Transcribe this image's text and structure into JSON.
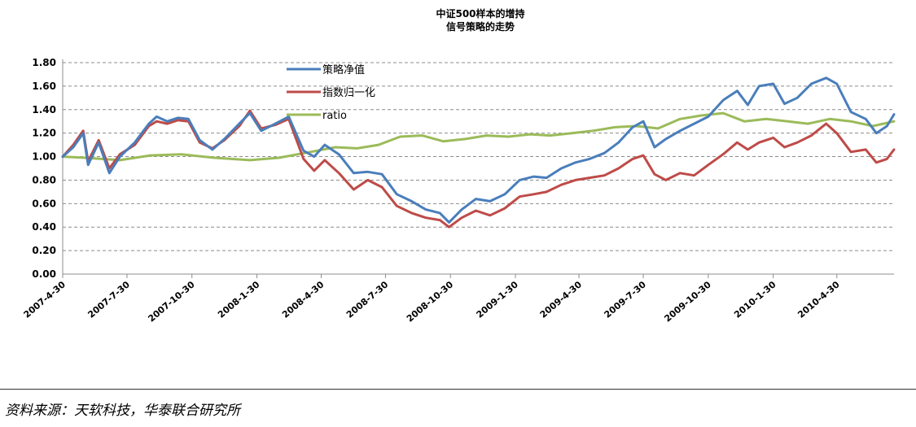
{
  "chart_data": {
    "type": "line",
    "title": [
      "中证500样本的增持",
      "信号策略的走势"
    ],
    "xlabel": "",
    "ylabel": "",
    "ylim": [
      0,
      1.8
    ],
    "yticks": [
      "0.00",
      "0.20",
      "0.40",
      "0.60",
      "0.80",
      "1.00",
      "1.20",
      "1.40",
      "1.60",
      "1.80"
    ],
    "x_range": [
      "2007-4-30",
      "2010-7-20"
    ],
    "xticks": [
      "2007-4-30",
      "2007-7-30",
      "2007-10-30",
      "2008-1-30",
      "2008-4-30",
      "2008-7-30",
      "2008-10-30",
      "2009-1-30",
      "2009-4-30",
      "2009-7-30",
      "2009-10-30",
      "2010-1-30",
      "2010-4-30"
    ],
    "grid": "horizontal dashed",
    "legend_position": "top-center",
    "series": [
      {
        "name": "策略净值",
        "color": "#4a7ebb",
        "points": [
          [
            "2007-4-30",
            1.0
          ],
          [
            "2007-5-15",
            1.08
          ],
          [
            "2007-5-29",
            1.2
          ],
          [
            "2007-6-5",
            0.93
          ],
          [
            "2007-6-20",
            1.12
          ],
          [
            "2007-7-5",
            0.86
          ],
          [
            "2007-7-20",
            1.0
          ],
          [
            "2007-8-10",
            1.12
          ],
          [
            "2007-8-30",
            1.28
          ],
          [
            "2007-9-10",
            1.34
          ],
          [
            "2007-9-25",
            1.3
          ],
          [
            "2007-10-10",
            1.33
          ],
          [
            "2007-10-25",
            1.32
          ],
          [
            "2007-11-10",
            1.14
          ],
          [
            "2007-11-28",
            1.06
          ],
          [
            "2007-12-15",
            1.15
          ],
          [
            "2008-1-5",
            1.28
          ],
          [
            "2008-1-20",
            1.37
          ],
          [
            "2008-2-5",
            1.22
          ],
          [
            "2008-2-25",
            1.28
          ],
          [
            "2008-3-15",
            1.34
          ],
          [
            "2008-4-5",
            1.05
          ],
          [
            "2008-4-20",
            1.0
          ],
          [
            "2008-5-5",
            1.1
          ],
          [
            "2008-5-25",
            1.02
          ],
          [
            "2008-6-15",
            0.86
          ],
          [
            "2008-7-5",
            0.87
          ],
          [
            "2008-7-25",
            0.85
          ],
          [
            "2008-8-15",
            0.68
          ],
          [
            "2008-9-5",
            0.62
          ],
          [
            "2008-9-25",
            0.55
          ],
          [
            "2008-10-15",
            0.52
          ],
          [
            "2008-10-28",
            0.44
          ],
          [
            "2008-11-15",
            0.55
          ],
          [
            "2008-12-5",
            0.64
          ],
          [
            "2008-12-25",
            0.62
          ],
          [
            "2009-1-15",
            0.68
          ],
          [
            "2009-2-5",
            0.8
          ],
          [
            "2009-2-25",
            0.83
          ],
          [
            "2009-3-15",
            0.82
          ],
          [
            "2009-4-5",
            0.9
          ],
          [
            "2009-4-25",
            0.95
          ],
          [
            "2009-5-15",
            0.98
          ],
          [
            "2009-6-5",
            1.03
          ],
          [
            "2009-6-25",
            1.12
          ],
          [
            "2009-7-15",
            1.25
          ],
          [
            "2009-7-30",
            1.3
          ],
          [
            "2009-8-15",
            1.08
          ],
          [
            "2009-8-31",
            1.15
          ],
          [
            "2009-9-20",
            1.22
          ],
          [
            "2009-10-10",
            1.28
          ],
          [
            "2009-10-30",
            1.34
          ],
          [
            "2009-11-20",
            1.48
          ],
          [
            "2009-12-10",
            1.56
          ],
          [
            "2009-12-25",
            1.44
          ],
          [
            "2010-1-10",
            1.6
          ],
          [
            "2010-1-30",
            1.62
          ],
          [
            "2010-2-15",
            1.45
          ],
          [
            "2010-3-5",
            1.5
          ],
          [
            "2010-3-25",
            1.62
          ],
          [
            "2010-4-15",
            1.67
          ],
          [
            "2010-4-30",
            1.62
          ],
          [
            "2010-5-20",
            1.38
          ],
          [
            "2010-6-10",
            1.32
          ],
          [
            "2010-6-25",
            1.2
          ],
          [
            "2010-7-10",
            1.26
          ],
          [
            "2010-7-20",
            1.36
          ]
        ]
      },
      {
        "name": "指数归一化",
        "color": "#be4b48",
        "points": [
          [
            "2007-4-30",
            1.0
          ],
          [
            "2007-5-15",
            1.1
          ],
          [
            "2007-5-29",
            1.22
          ],
          [
            "2007-6-5",
            0.96
          ],
          [
            "2007-6-20",
            1.14
          ],
          [
            "2007-7-5",
            0.9
          ],
          [
            "2007-7-20",
            1.02
          ],
          [
            "2007-8-10",
            1.1
          ],
          [
            "2007-8-30",
            1.26
          ],
          [
            "2007-9-10",
            1.3
          ],
          [
            "2007-9-25",
            1.28
          ],
          [
            "2007-10-10",
            1.31
          ],
          [
            "2007-10-25",
            1.3
          ],
          [
            "2007-11-10",
            1.12
          ],
          [
            "2007-11-28",
            1.07
          ],
          [
            "2007-12-15",
            1.14
          ],
          [
            "2008-1-5",
            1.26
          ],
          [
            "2008-1-20",
            1.39
          ],
          [
            "2008-2-5",
            1.24
          ],
          [
            "2008-2-25",
            1.27
          ],
          [
            "2008-3-15",
            1.32
          ],
          [
            "2008-4-5",
            0.98
          ],
          [
            "2008-4-20",
            0.88
          ],
          [
            "2008-5-5",
            0.97
          ],
          [
            "2008-5-25",
            0.86
          ],
          [
            "2008-6-15",
            0.72
          ],
          [
            "2008-7-5",
            0.8
          ],
          [
            "2008-7-25",
            0.74
          ],
          [
            "2008-8-15",
            0.58
          ],
          [
            "2008-9-5",
            0.52
          ],
          [
            "2008-9-25",
            0.48
          ],
          [
            "2008-10-15",
            0.46
          ],
          [
            "2008-10-28",
            0.4
          ],
          [
            "2008-11-15",
            0.48
          ],
          [
            "2008-12-5",
            0.54
          ],
          [
            "2008-12-25",
            0.5
          ],
          [
            "2009-1-15",
            0.56
          ],
          [
            "2009-2-5",
            0.66
          ],
          [
            "2009-2-25",
            0.68
          ],
          [
            "2009-3-15",
            0.7
          ],
          [
            "2009-4-5",
            0.76
          ],
          [
            "2009-4-25",
            0.8
          ],
          [
            "2009-5-15",
            0.82
          ],
          [
            "2009-6-5",
            0.84
          ],
          [
            "2009-6-25",
            0.9
          ],
          [
            "2009-7-15",
            0.98
          ],
          [
            "2009-7-30",
            1.01
          ],
          [
            "2009-8-15",
            0.85
          ],
          [
            "2009-8-31",
            0.8
          ],
          [
            "2009-9-20",
            0.86
          ],
          [
            "2009-10-10",
            0.84
          ],
          [
            "2009-10-30",
            0.93
          ],
          [
            "2009-11-20",
            1.02
          ],
          [
            "2009-12-10",
            1.12
          ],
          [
            "2009-12-25",
            1.06
          ],
          [
            "2010-1-10",
            1.12
          ],
          [
            "2010-1-30",
            1.16
          ],
          [
            "2010-2-15",
            1.08
          ],
          [
            "2010-3-5",
            1.12
          ],
          [
            "2010-3-25",
            1.18
          ],
          [
            "2010-4-15",
            1.28
          ],
          [
            "2010-4-30",
            1.2
          ],
          [
            "2010-5-20",
            1.04
          ],
          [
            "2010-6-10",
            1.06
          ],
          [
            "2010-6-25",
            0.95
          ],
          [
            "2010-7-10",
            0.98
          ],
          [
            "2010-7-20",
            1.06
          ]
        ]
      },
      {
        "name": "ratio",
        "color": "#9bbb59",
        "points": [
          [
            "2007-4-30",
            1.0
          ],
          [
            "2007-6-1",
            0.99
          ],
          [
            "2007-7-20",
            0.97
          ],
          [
            "2007-9-1",
            1.01
          ],
          [
            "2007-10-15",
            1.02
          ],
          [
            "2007-12-1",
            0.99
          ],
          [
            "2008-1-20",
            0.97
          ],
          [
            "2008-3-1",
            0.99
          ],
          [
            "2008-4-15",
            1.04
          ],
          [
            "2008-5-20",
            1.08
          ],
          [
            "2008-6-20",
            1.07
          ],
          [
            "2008-7-20",
            1.1
          ],
          [
            "2008-8-20",
            1.17
          ],
          [
            "2008-9-20",
            1.18
          ],
          [
            "2008-10-20",
            1.13
          ],
          [
            "2008-11-20",
            1.15
          ],
          [
            "2008-12-20",
            1.18
          ],
          [
            "2009-1-20",
            1.17
          ],
          [
            "2009-2-20",
            1.19
          ],
          [
            "2009-3-20",
            1.18
          ],
          [
            "2009-4-20",
            1.2
          ],
          [
            "2009-5-20",
            1.22
          ],
          [
            "2009-6-20",
            1.25
          ],
          [
            "2009-7-20",
            1.26
          ],
          [
            "2009-8-20",
            1.24
          ],
          [
            "2009-9-20",
            1.32
          ],
          [
            "2009-10-20",
            1.35
          ],
          [
            "2009-11-20",
            1.37
          ],
          [
            "2009-12-20",
            1.3
          ],
          [
            "2010-1-20",
            1.32
          ],
          [
            "2010-2-20",
            1.3
          ],
          [
            "2010-3-20",
            1.28
          ],
          [
            "2010-4-20",
            1.32
          ],
          [
            "2010-5-20",
            1.3
          ],
          [
            "2010-6-20",
            1.26
          ],
          [
            "2010-7-20",
            1.3
          ]
        ]
      }
    ]
  },
  "source_note": "资料来源：天软科技，华泰联合研究所"
}
